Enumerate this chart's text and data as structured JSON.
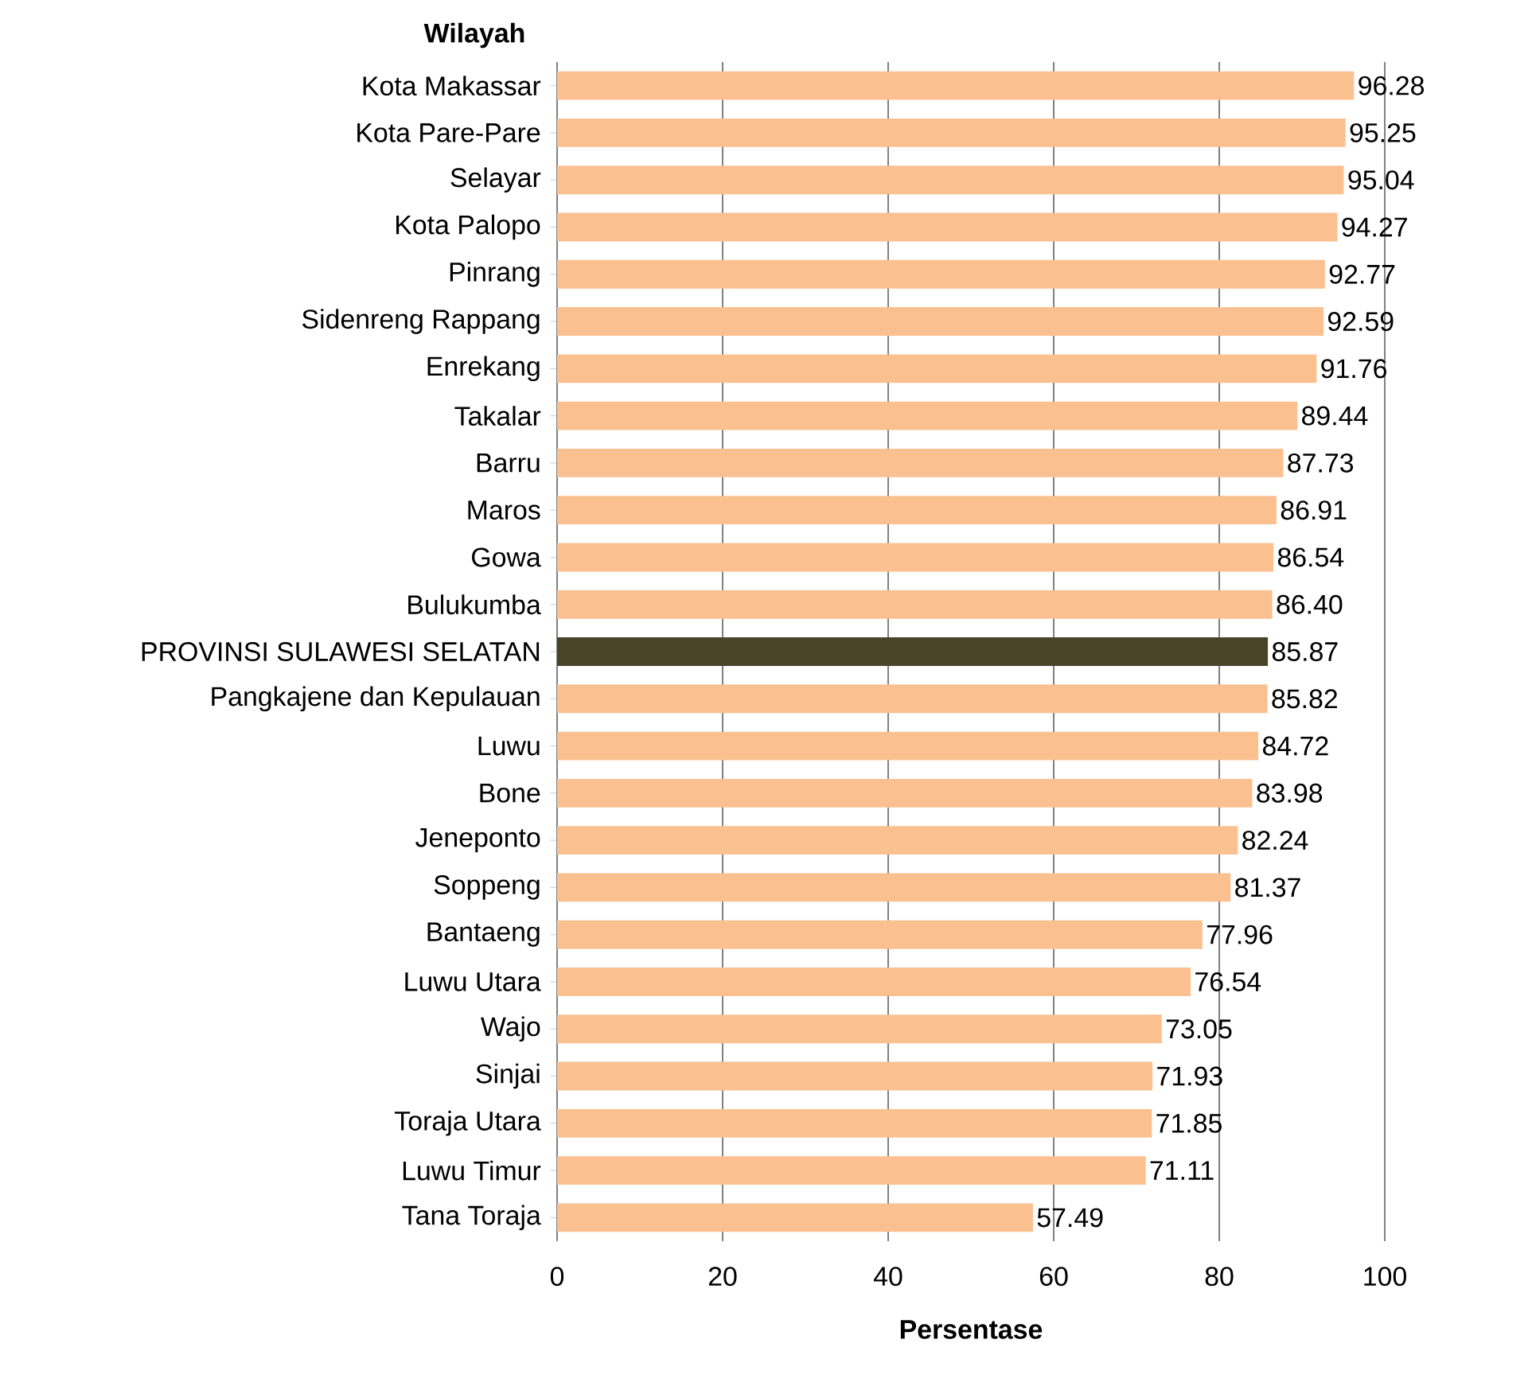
{
  "chart_data": {
    "type": "bar",
    "orientation": "horizontal",
    "xlabel": "Persentase",
    "ylabel": "Wilayah",
    "categories": [
      "Kota Makassar",
      "Kota Pare-Pare",
      "Selayar",
      "Kota Palopo",
      "Pinrang",
      "Sidenreng Rappang",
      "Enrekang",
      "Takalar",
      "Barru",
      "Maros",
      "Gowa",
      "Bulukumba",
      "PROVINSI SULAWESI SELATAN",
      "Pangkajene dan Kepulauan",
      "Luwu",
      "Bone",
      "Jeneponto",
      "Soppeng",
      "Bantaeng",
      "Luwu Utara",
      "Wajo",
      "Sinjai",
      "Toraja Utara",
      "Luwu Timur",
      "Tana Toraja"
    ],
    "values": [
      96.28,
      95.25,
      95.04,
      94.27,
      92.77,
      92.59,
      91.76,
      89.44,
      87.73,
      86.91,
      86.54,
      86.4,
      85.87,
      85.82,
      84.72,
      83.98,
      82.24,
      81.37,
      77.96,
      76.54,
      73.05,
      71.93,
      71.85,
      71.11,
      57.49
    ],
    "colors": [
      "#fac090",
      "#fac090",
      "#fac090",
      "#fac090",
      "#fac090",
      "#fac090",
      "#fac090",
      "#fac090",
      "#fac090",
      "#fac090",
      "#fac090",
      "#fac090",
      "#494429",
      "#fac090",
      "#fac090",
      "#fac090",
      "#fac090",
      "#fac090",
      "#fac090",
      "#fac090",
      "#fac090",
      "#fac090",
      "#fac090",
      "#fac090",
      "#fac090"
    ],
    "value_labels": [
      "96.28",
      "95.25",
      "95.04",
      "94.27",
      "92.77",
      "92.59",
      "91.76",
      "89.44",
      "87.73",
      "86.91",
      "86.54",
      "86.40",
      "85.87",
      "85.82",
      "84.72",
      "83.98",
      "82.24",
      "81.37",
      "77.96",
      "76.54",
      "73.05",
      "71.93",
      "71.85",
      "71.11",
      "57.49"
    ],
    "xlim": [
      0,
      100
    ],
    "xticks": [
      0,
      20,
      40,
      60,
      80,
      100
    ],
    "grid": "x"
  }
}
